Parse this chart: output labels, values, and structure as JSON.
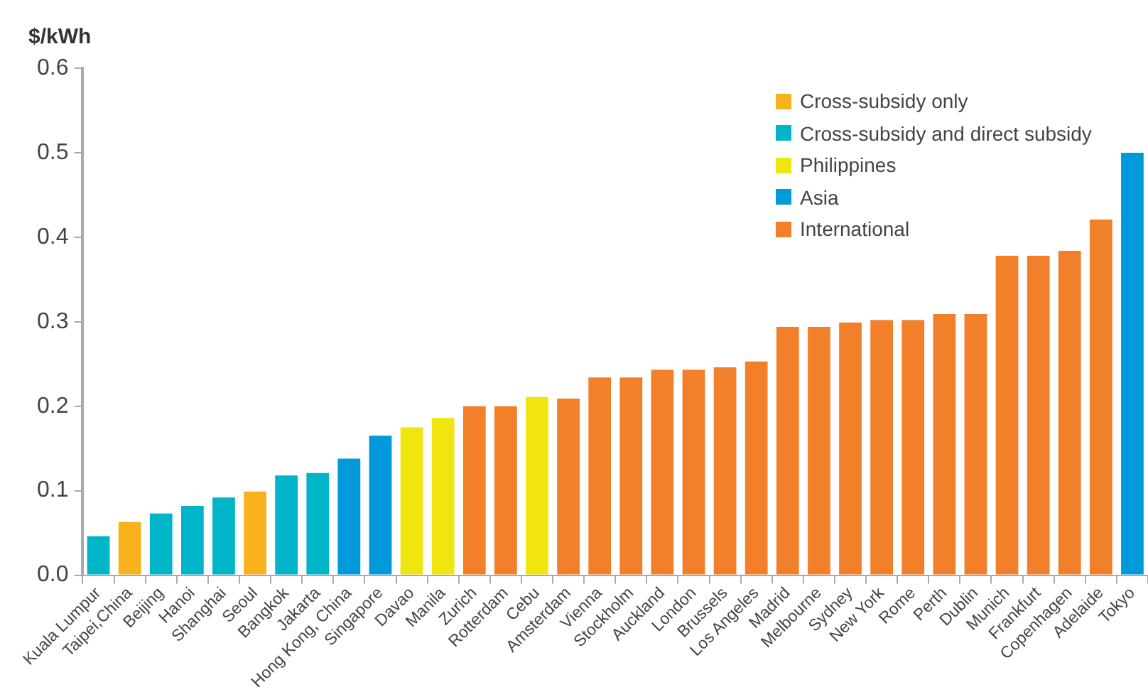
{
  "chart_data": {
    "type": "bar",
    "ylabel": "$/kWh",
    "categories": [
      "Kuala Lumpur",
      "Taipei,China",
      "Beijing",
      "Hanoi",
      "Shanghai",
      "Seoul",
      "Bangkok",
      "Jakarta",
      "Hong Kong, China",
      "Singapore",
      "Davao",
      "Manila",
      "Zurich",
      "Rotterdam",
      "Cebu",
      "Amsterdam",
      "Vienna",
      "Stockholm",
      "Auckland",
      "London",
      "Brussels",
      "Los Angeles",
      "Madrid",
      "Melbourne",
      "Sydney",
      "New York",
      "Rome",
      "Perth",
      "Dublin",
      "Munich",
      "Frankfurt",
      "Copenhagen",
      "Adelaide",
      "Tokyo"
    ],
    "series": [
      {
        "name": "Cross-subsidy only",
        "color": "#f9b21b",
        "values": [
          null,
          0.063,
          null,
          null,
          null,
          0.099,
          null,
          null,
          null,
          null,
          null,
          null,
          null,
          null,
          null,
          null,
          null,
          null,
          null,
          null,
          null,
          null,
          null,
          null,
          null,
          null,
          null,
          null,
          null,
          null,
          null,
          null,
          null,
          null
        ]
      },
      {
        "name": "Cross-subsidy and direct subsidy",
        "color": "#00b5c8",
        "values": [
          0.046,
          null,
          0.073,
          0.082,
          0.092,
          null,
          0.118,
          0.121,
          null,
          null,
          null,
          null,
          null,
          null,
          null,
          null,
          null,
          null,
          null,
          null,
          null,
          null,
          null,
          null,
          null,
          null,
          null,
          null,
          null,
          null,
          null,
          null,
          null,
          null
        ]
      },
      {
        "name": "Philippines",
        "color": "#f0e50f",
        "values": [
          null,
          null,
          null,
          null,
          null,
          null,
          null,
          null,
          null,
          null,
          0.175,
          0.186,
          null,
          null,
          0.211,
          null,
          null,
          null,
          null,
          null,
          null,
          null,
          null,
          null,
          null,
          null,
          null,
          null,
          null,
          null,
          null,
          null,
          null,
          null
        ]
      },
      {
        "name": "Asia",
        "color": "#009ada",
        "values": [
          null,
          null,
          null,
          null,
          null,
          null,
          null,
          null,
          0.138,
          0.165,
          null,
          null,
          null,
          null,
          null,
          null,
          null,
          null,
          null,
          null,
          null,
          null,
          null,
          null,
          null,
          null,
          null,
          null,
          null,
          null,
          null,
          null,
          null,
          0.5
        ]
      },
      {
        "name": "International",
        "color": "#f2802b",
        "values": [
          null,
          null,
          null,
          null,
          null,
          null,
          null,
          null,
          null,
          null,
          null,
          null,
          0.2,
          0.2,
          null,
          0.209,
          0.234,
          0.234,
          0.243,
          0.243,
          0.246,
          0.253,
          0.294,
          0.294,
          0.299,
          0.302,
          0.302,
          0.309,
          0.309,
          0.378,
          0.378,
          0.384,
          0.421,
          null
        ]
      }
    ],
    "ylim": [
      0,
      0.6
    ],
    "yticks": [
      {
        "value": 0,
        "label": "0.0"
      },
      0.1,
      0.2,
      0.3,
      0.4,
      0.5,
      0.6
    ],
    "grid": false,
    "legend": "top right"
  }
}
